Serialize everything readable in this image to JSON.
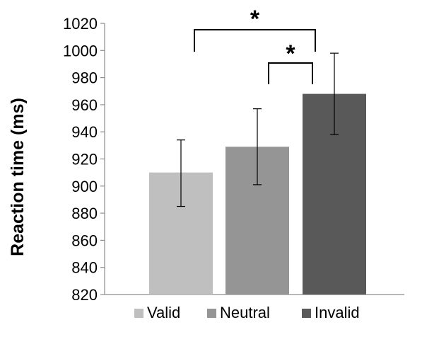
{
  "chart_data": {
    "type": "bar",
    "categories": [
      "Valid",
      "Neutral",
      "Invalid"
    ],
    "values": [
      910,
      929,
      968
    ],
    "error_bars": [
      {
        "low": 885,
        "high": 934
      },
      {
        "low": 901,
        "high": 957
      },
      {
        "low": 938,
        "high": 998
      }
    ],
    "colors": [
      "#bfbfbf",
      "#959595",
      "#595959"
    ],
    "ylabel": "Reaction time (ms)",
    "ylim": [
      820,
      1020
    ],
    "yticks": [
      820,
      840,
      860,
      880,
      900,
      920,
      940,
      960,
      980,
      1000,
      1020
    ],
    "grid": false,
    "legend": {
      "placement": "bottom",
      "entries": [
        "Valid",
        "Neutral",
        "Invalid"
      ]
    },
    "significance": [
      {
        "from": "Valid",
        "to": "Invalid",
        "label": "*"
      },
      {
        "from": "Neutral",
        "to": "Invalid",
        "label": "*"
      }
    ]
  }
}
